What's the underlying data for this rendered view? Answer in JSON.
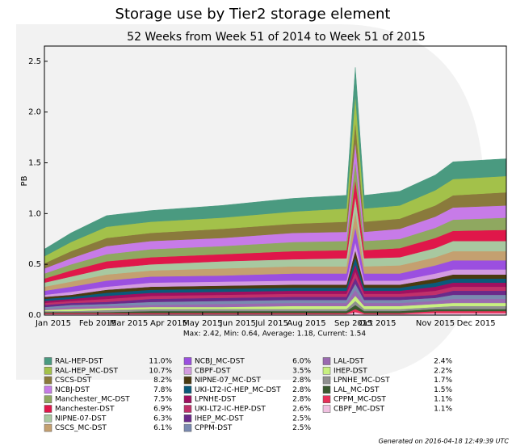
{
  "chart_data": {
    "type": "stacked_area",
    "title": "Storage use by Tier2 storage element",
    "subtitle": "52 Weeks from Week 51 of 2014 to Week 51 of 2015",
    "y_label": "PB",
    "summary": "Max: 2.42, Min: 0.64, Average: 1.18, Current: 1.54",
    "footer": "Generated on 2016-04-18 12:49:39 UTC",
    "x": [
      0,
      3,
      7,
      12,
      20,
      28,
      34,
      35,
      36,
      40,
      44,
      46,
      52
    ],
    "xlim": [
      0,
      52
    ],
    "xticks": [
      {
        "value": 1,
        "label": "Jan 2015"
      },
      {
        "value": 6,
        "label": "Feb 2015"
      },
      {
        "value": 9.5,
        "label": "Mar 2015"
      },
      {
        "value": 14,
        "label": "Apr 2015"
      },
      {
        "value": 17.8,
        "label": "May 2015"
      },
      {
        "value": 21.8,
        "label": "Jun 2015"
      },
      {
        "value": 25.6,
        "label": "Jul 2015"
      },
      {
        "value": 29.5,
        "label": "Aug 2015"
      },
      {
        "value": 34.8,
        "label": "Sep 2015"
      },
      {
        "value": 37.5,
        "label": "Oct 2015"
      },
      {
        "value": 44,
        "label": "Nov 2015"
      },
      {
        "value": 48.6,
        "label": "Dec 2015"
      }
    ],
    "ylim": [
      0,
      2.65
    ],
    "yticks": [
      {
        "value": 0,
        "label": "0.0"
      },
      0.5,
      {
        "value": 1,
        "label": "1.0"
      },
      1.5,
      {
        "value": 2,
        "label": "2.0"
      },
      2.5
    ],
    "series": [
      {
        "name": "RAL-HEP-DST",
        "share": "11.0%",
        "color": "#4a9a80",
        "values": [
          0.07,
          0.09,
          0.11,
          0.11,
          0.12,
          0.13,
          0.13,
          0.27,
          0.13,
          0.14,
          0.15,
          0.17,
          0.17
        ]
      },
      {
        "name": "RAL-HEP_MC-DST",
        "share": "10.7%",
        "color": "#a3c14a",
        "values": [
          0.07,
          0.09,
          0.11,
          0.11,
          0.11,
          0.12,
          0.13,
          0.26,
          0.13,
          0.13,
          0.15,
          0.16,
          0.16
        ]
      },
      {
        "name": "CSCS-DST",
        "share": "8.2%",
        "color": "#8a7a3c",
        "values": [
          0.05,
          0.07,
          0.08,
          0.08,
          0.09,
          0.09,
          0.1,
          0.2,
          0.1,
          0.1,
          0.11,
          0.12,
          0.13
        ]
      },
      {
        "name": "NCBJ-DST",
        "share": "7.8%",
        "color": "#c77be8",
        "values": [
          0.05,
          0.06,
          0.08,
          0.08,
          0.08,
          0.09,
          0.09,
          0.19,
          0.09,
          0.1,
          0.11,
          0.12,
          0.12
        ]
      },
      {
        "name": "Manchester_MC-DST",
        "share": "7.5%",
        "color": "#8fa860",
        "values": [
          0.05,
          0.06,
          0.07,
          0.08,
          0.08,
          0.09,
          0.09,
          0.18,
          0.09,
          0.09,
          0.1,
          0.11,
          0.12
        ]
      },
      {
        "name": "Manchester-DST",
        "share": "6.9%",
        "color": "#e0174a",
        "values": [
          0.04,
          0.06,
          0.07,
          0.07,
          0.07,
          0.08,
          0.08,
          0.17,
          0.08,
          0.09,
          0.1,
          0.1,
          0.11
        ]
      },
      {
        "name": "NIPNE-07-DST",
        "share": "6.3%",
        "color": "#a8c8a0",
        "values": [
          0.04,
          0.05,
          0.06,
          0.06,
          0.07,
          0.07,
          0.08,
          0.15,
          0.08,
          0.08,
          0.09,
          0.1,
          0.1
        ]
      },
      {
        "name": "CSCS_MC-DST",
        "share": "6.1%",
        "color": "#c4a070",
        "values": [
          0.04,
          0.05,
          0.06,
          0.06,
          0.07,
          0.07,
          0.07,
          0.15,
          0.07,
          0.08,
          0.08,
          0.09,
          0.09
        ]
      },
      {
        "name": "NCBJ_MC-DST",
        "share": "6.0%",
        "color": "#9b4fe0",
        "values": [
          0.04,
          0.05,
          0.06,
          0.06,
          0.06,
          0.07,
          0.07,
          0.15,
          0.07,
          0.07,
          0.08,
          0.09,
          0.09
        ]
      },
      {
        "name": "CBPF-DST",
        "share": "3.5%",
        "color": "#d39be0",
        "values": [
          0.02,
          0.03,
          0.03,
          0.04,
          0.04,
          0.04,
          0.04,
          0.08,
          0.04,
          0.04,
          0.05,
          0.05,
          0.05
        ]
      },
      {
        "name": "NIPNE-07_MC-DST",
        "share": "2.8%",
        "color": "#4a3a10",
        "values": [
          0.02,
          0.02,
          0.03,
          0.03,
          0.03,
          0.03,
          0.03,
          0.07,
          0.03,
          0.03,
          0.04,
          0.04,
          0.04
        ]
      },
      {
        "name": "UKI-LT2-IC-HEP_MC-DST",
        "share": "2.8%",
        "color": "#0a5a7a",
        "values": [
          0.02,
          0.02,
          0.03,
          0.03,
          0.03,
          0.03,
          0.03,
          0.07,
          0.03,
          0.03,
          0.04,
          0.04,
          0.04
        ]
      },
      {
        "name": "LPNHE-DST",
        "share": "2.8%",
        "color": "#a01060",
        "values": [
          0.02,
          0.02,
          0.03,
          0.03,
          0.03,
          0.03,
          0.03,
          0.07,
          0.03,
          0.03,
          0.04,
          0.04,
          0.04
        ]
      },
      {
        "name": "UKI-LT2-IC-HEP-DST",
        "share": "2.6%",
        "color": "#c0306a",
        "values": [
          0.02,
          0.02,
          0.03,
          0.03,
          0.03,
          0.03,
          0.03,
          0.06,
          0.03,
          0.03,
          0.04,
          0.04,
          0.04
        ]
      },
      {
        "name": "IHEP_MC-DST",
        "share": "2.5%",
        "color": "#6a2a8a",
        "values": [
          0.02,
          0.02,
          0.02,
          0.03,
          0.03,
          0.03,
          0.03,
          0.06,
          0.03,
          0.03,
          0.03,
          0.04,
          0.04
        ]
      },
      {
        "name": "CPPM-DST",
        "share": "2.5%",
        "color": "#7a8ab0",
        "values": [
          0.02,
          0.02,
          0.02,
          0.03,
          0.03,
          0.03,
          0.03,
          0.06,
          0.03,
          0.03,
          0.03,
          0.04,
          0.04
        ]
      },
      {
        "name": "LAL-DST",
        "share": "2.4%",
        "color": "#9a6ab0",
        "values": [
          0.01,
          0.02,
          0.02,
          0.02,
          0.03,
          0.03,
          0.03,
          0.06,
          0.03,
          0.03,
          0.03,
          0.04,
          0.04
        ]
      },
      {
        "name": "IHEP-DST",
        "share": "2.2%",
        "color": "#c8f080",
        "values": [
          0.01,
          0.02,
          0.02,
          0.02,
          0.02,
          0.03,
          0.03,
          0.05,
          0.03,
          0.03,
          0.03,
          0.03,
          0.03
        ]
      },
      {
        "name": "LPNHE_MC-DST",
        "share": "1.7%",
        "color": "#909090",
        "values": [
          0.01,
          0.01,
          0.02,
          0.02,
          0.02,
          0.02,
          0.02,
          0.04,
          0.02,
          0.02,
          0.02,
          0.03,
          0.03
        ]
      },
      {
        "name": "LAL_MC-DST",
        "share": "1.5%",
        "color": "#3a5a30",
        "values": [
          0.01,
          0.01,
          0.01,
          0.02,
          0.02,
          0.02,
          0.02,
          0.04,
          0.02,
          0.02,
          0.02,
          0.02,
          0.02
        ]
      },
      {
        "name": "CPPM_MC-DST",
        "share": "1.1%",
        "color": "#e8305a",
        "values": [
          0.01,
          0.01,
          0.01,
          0.01,
          0.01,
          0.01,
          0.01,
          0.03,
          0.01,
          0.01,
          0.02,
          0.02,
          0.02
        ]
      },
      {
        "name": "CBPF_MC-DST",
        "share": "1.1%",
        "color": "#f0c0e0",
        "values": [
          0.01,
          0.01,
          0.01,
          0.01,
          0.01,
          0.01,
          0.01,
          0.03,
          0.01,
          0.01,
          0.02,
          0.02,
          0.02
        ]
      }
    ]
  }
}
